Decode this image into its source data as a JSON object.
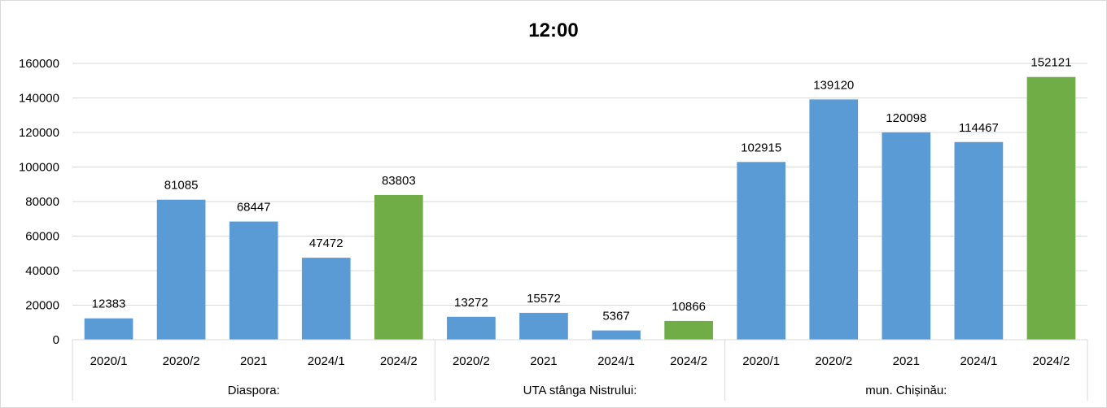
{
  "chart_data": {
    "type": "bar",
    "title": "12:00",
    "ylim": [
      0,
      160000
    ],
    "yticks": [
      0,
      20000,
      40000,
      60000,
      80000,
      100000,
      120000,
      140000,
      160000
    ],
    "grid": true,
    "legend": "none",
    "colors": {
      "default": "#5b9bd5",
      "highlight": "#70ad47"
    },
    "groups": [
      {
        "name": "Diaspora:",
        "categories": [
          "2020/1",
          "2020/2",
          "2021",
          "2024/1",
          "2024/2"
        ],
        "values": [
          12383,
          81085,
          68447,
          47472,
          83803
        ],
        "highlight": [
          false,
          false,
          false,
          false,
          true
        ]
      },
      {
        "name": "UTA stânga Nistrului:",
        "categories": [
          "2020/2",
          "2021",
          "2024/1",
          "2024/2"
        ],
        "values": [
          13272,
          15572,
          5367,
          10866
        ],
        "highlight": [
          false,
          false,
          false,
          true
        ]
      },
      {
        "name": "mun. Chișinău:",
        "categories": [
          "2020/1",
          "2020/2",
          "2021",
          "2024/1",
          "2024/2"
        ],
        "values": [
          102915,
          139120,
          120098,
          114467,
          152121
        ],
        "highlight": [
          false,
          false,
          false,
          false,
          true
        ]
      }
    ]
  }
}
